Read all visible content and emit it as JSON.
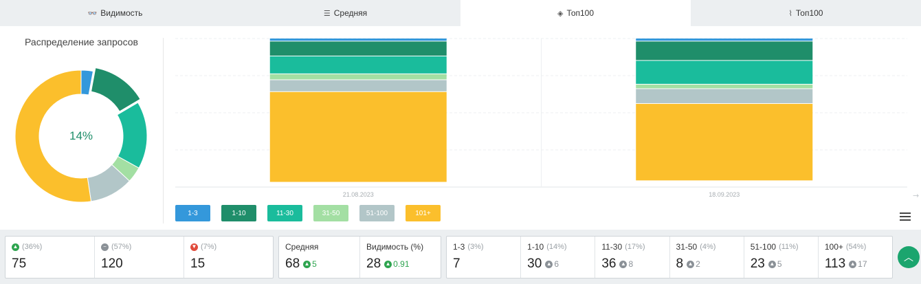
{
  "tabs": [
    {
      "label": "Видимость",
      "icon": "glasses-icon",
      "glyph": "👓"
    },
    {
      "label": "Средняя",
      "icon": "lines-icon",
      "glyph": "☰"
    },
    {
      "label": "Топ100",
      "icon": "layers-icon",
      "glyph": "◈"
    },
    {
      "label": "Топ100",
      "icon": "trend-icon",
      "glyph": "⌇"
    }
  ],
  "active_tab": 2,
  "donut": {
    "title": "Распределение запросов",
    "center_text": "14%",
    "segments": [
      {
        "name": "1-3",
        "value": 3,
        "color": "#3498db"
      },
      {
        "name": "1-10",
        "value": 14,
        "color": "#1f8e6a"
      },
      {
        "name": "11-30",
        "value": 17,
        "color": "#1abc9c"
      },
      {
        "name": "31-50",
        "value": 4,
        "color": "#a3dfa3"
      },
      {
        "name": "51-100",
        "value": 11,
        "color": "#b2c6c8"
      },
      {
        "name": "101+",
        "value": 54,
        "color": "#fbbf2c"
      }
    ]
  },
  "chart_data": {
    "type": "bar",
    "stacked": true,
    "categories": [
      "21.08.2023",
      "18.09.2023"
    ],
    "series": [
      {
        "name": "1-3",
        "color": "#3498db",
        "values": [
          2,
          2
        ]
      },
      {
        "name": "1-10",
        "color": "#1f8e6a",
        "values": [
          10,
          13
        ]
      },
      {
        "name": "11-30",
        "color": "#1abc9c",
        "values": [
          12,
          16
        ]
      },
      {
        "name": "31-50",
        "color": "#a3dfa3",
        "values": [
          4,
          3
        ]
      },
      {
        "name": "51-100",
        "color": "#b2c6c8",
        "values": [
          8,
          10
        ]
      },
      {
        "name": "101+",
        "color": "#fbbf2c",
        "values": [
          61,
          52
        ]
      }
    ],
    "ylim": [
      0,
      100
    ],
    "grid": true,
    "legend_position": "bottom-left"
  },
  "legend": [
    {
      "label": "1-3",
      "color": "#3498db"
    },
    {
      "label": "1-10",
      "color": "#1f8e6a"
    },
    {
      "label": "11-30",
      "color": "#1abc9c"
    },
    {
      "label": "31-50",
      "color": "#a3dfa3"
    },
    {
      "label": "51-100",
      "color": "#b2c6c8"
    },
    {
      "label": "101+",
      "color": "#fbbf2c"
    }
  ],
  "stats": {
    "trend": [
      {
        "pct": "(36%)",
        "value": "75",
        "icon": "arrow-up-icon",
        "glyph": "▲",
        "tone": "green"
      },
      {
        "pct": "(57%)",
        "value": "120",
        "icon": "minus-icon",
        "glyph": "−",
        "tone": "gray"
      },
      {
        "pct": "(7%)",
        "value": "15",
        "icon": "arrow-down-icon",
        "glyph": "▼",
        "tone": "red"
      }
    ],
    "metrics": [
      {
        "label": "Средняя",
        "value": "68",
        "change": "5"
      },
      {
        "label": "Видимость (%)",
        "value": "28",
        "change": "0.91"
      }
    ],
    "ranges": [
      {
        "label": "1-3",
        "pct": "(3%)",
        "value": "7",
        "change": ""
      },
      {
        "label": "1-10",
        "pct": "(14%)",
        "value": "30",
        "change": "6"
      },
      {
        "label": "11-30",
        "pct": "(17%)",
        "value": "36",
        "change": "8"
      },
      {
        "label": "31-50",
        "pct": "(4%)",
        "value": "8",
        "change": "2"
      },
      {
        "label": "51-100",
        "pct": "(11%)",
        "value": "23",
        "change": "5"
      },
      {
        "label": "100+",
        "pct": "(54%)",
        "value": "113",
        "change": "17"
      }
    ]
  },
  "scroll_top_icon": "chevron-up-icon",
  "menu_icon": "hamburger-menu-icon"
}
